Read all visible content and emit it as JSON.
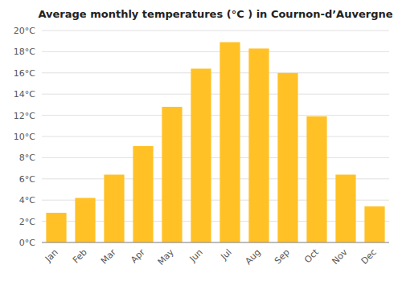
{
  "chart_data": {
    "type": "bar",
    "title": "Average monthly temperatures (°C ) in Cournon-d’Auvergne",
    "categories": [
      "Jan",
      "Feb",
      "Mar",
      "Apr",
      "May",
      "Jun",
      "Jul",
      "Aug",
      "Sep",
      "Oct",
      "Nov",
      "Dec"
    ],
    "values": [
      2.8,
      4.2,
      6.4,
      9.1,
      12.8,
      16.4,
      18.9,
      18.3,
      16.0,
      11.9,
      6.4,
      3.4
    ],
    "color": "#FFC125",
    "ylim": [
      0,
      20
    ],
    "yticks": [
      {
        "value": 0,
        "label": "0°C"
      },
      {
        "value": 2,
        "label": "2°C"
      },
      {
        "value": 4,
        "label": "4°C"
      },
      {
        "value": 6,
        "label": "6°C"
      },
      {
        "value": 8,
        "label": "8°C"
      },
      {
        "value": 10,
        "label": "10°C"
      },
      {
        "value": 12,
        "label": "12°C"
      },
      {
        "value": 14,
        "label": "14°C"
      },
      {
        "value": 16,
        "label": "16°C"
      },
      {
        "value": 18,
        "label": "18°C"
      },
      {
        "value": 20,
        "label": "20°C"
      }
    ],
    "grid": true
  }
}
